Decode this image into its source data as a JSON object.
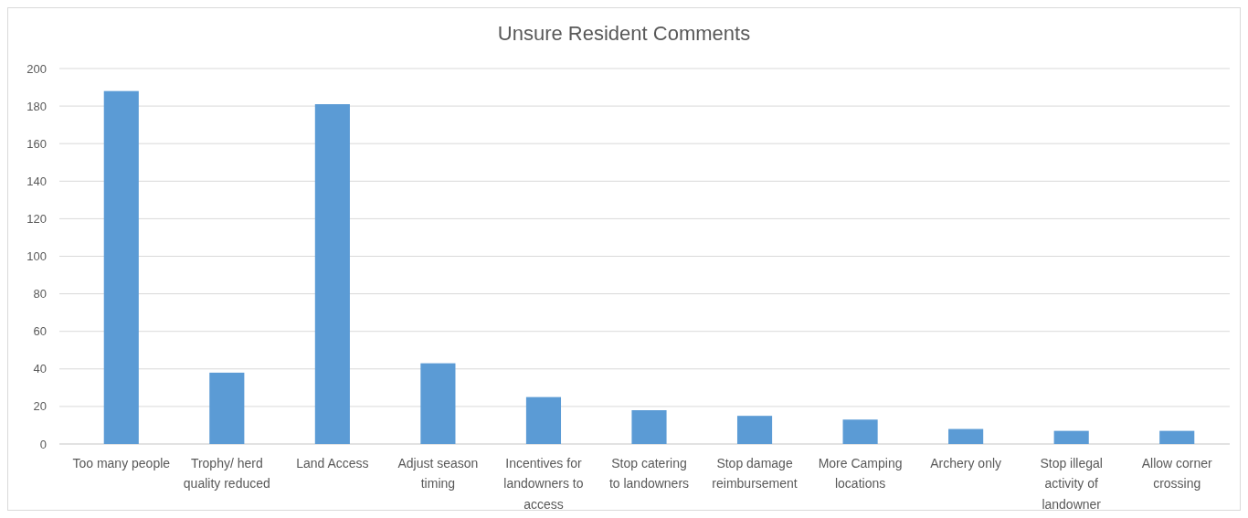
{
  "chart_data": {
    "type": "bar",
    "title": "Unsure Resident Comments",
    "categories": [
      "Too many people",
      "Trophy/ herd quality reduced",
      "Land Access",
      "Adjust season timing",
      "Incentives for landowners to access",
      "Stop catering to landowners",
      "Stop damage reimbursement",
      "More Camping locations",
      "Archery only",
      "Stop illegal activity of landowner",
      "Allow corner crossing"
    ],
    "values": [
      188,
      38,
      181,
      43,
      25,
      18,
      15,
      13,
      8,
      7,
      7
    ],
    "color": "#5b9bd5",
    "ylim": [
      0,
      200
    ],
    "yticks": [
      0,
      20,
      40,
      60,
      80,
      100,
      120,
      140,
      160,
      180,
      200
    ],
    "grid": "y"
  }
}
